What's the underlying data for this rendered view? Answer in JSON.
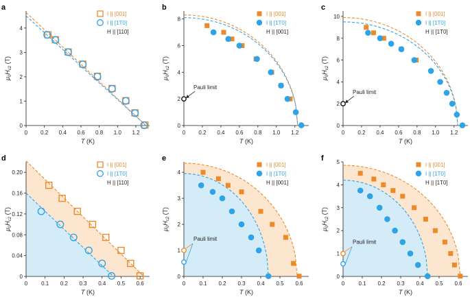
{
  "colors": {
    "orange": "#ec8a2a",
    "blue": "#2ea3e8",
    "orange_fill": "#fde6cf",
    "blue_fill": "#d3ecf8",
    "axis": "#231f20",
    "pauli": "#231f20"
  },
  "axis_texts": {
    "T_label": "T (K)",
    "y_label_mu": "μ",
    "y_label_sub0": "0",
    "y_label_H": "H",
    "y_label_subc2": "c2",
    "y_label_unit": "(T)"
  },
  "chart_data": [
    {
      "panel": "a",
      "type": "scatter",
      "xlim": [
        0,
        1.35
      ],
      "ylim": [
        0,
        4.7
      ],
      "xticks": [
        0,
        0.2,
        0.4,
        0.6,
        0.8,
        1.0,
        1.2
      ],
      "xtick_labels": [
        "0",
        "0.2",
        "0.4",
        "0.6",
        "0.8",
        "1.0",
        "1.2"
      ],
      "yticks": [
        0,
        1,
        2,
        3,
        4
      ],
      "ytick_labels": [
        "0",
        "1",
        "2",
        "3",
        "4"
      ],
      "marker": "open",
      "legend": [
        "I || [001]",
        "I || [1T0]",
        "H || [110]"
      ],
      "series": [
        {
          "name": "I || [001]",
          "color": "orange",
          "x": [
            0.24,
            0.32,
            0.46,
            0.62,
            0.78,
            0.94,
            1.09,
            1.19,
            1.3
          ],
          "y": [
            3.72,
            3.52,
            3.02,
            2.52,
            2.02,
            1.52,
            1.02,
            0.52,
            0.02
          ]
        },
        {
          "name": "I || [1T0]",
          "color": "blue",
          "x": [
            0.23,
            0.32,
            0.46,
            0.62,
            0.78,
            0.94,
            1.09,
            1.19,
            1.29
          ],
          "y": [
            3.72,
            3.51,
            3.01,
            2.51,
            2.01,
            1.51,
            1.01,
            0.51,
            0.01
          ]
        }
      ],
      "fits": [
        {
          "color": "orange",
          "x": [
            0,
            1.31
          ],
          "y": [
            4.64,
            0.0
          ]
        },
        {
          "color": "blue",
          "x": [
            0,
            1.31
          ],
          "y": [
            4.5,
            0.0
          ]
        }
      ]
    },
    {
      "panel": "b",
      "type": "scatter",
      "xlim": [
        0,
        1.35
      ],
      "ylim": [
        0,
        8.6
      ],
      "xticks": [
        0,
        0.2,
        0.4,
        0.6,
        0.8,
        1.0,
        1.2
      ],
      "xtick_labels": [
        "0",
        "0.2",
        "0.4",
        "0.6",
        "0.8",
        "1.0",
        "1.2"
      ],
      "yticks": [
        0,
        2,
        4,
        6,
        8
      ],
      "ytick_labels": [
        "0",
        "2",
        "4",
        "6",
        "8"
      ],
      "marker": "filled",
      "legend": [
        "I || [001]",
        "I || [1T0]",
        "H || [001]"
      ],
      "series": [
        {
          "name": "I || [001]",
          "color": "orange",
          "x": [
            0.25,
            0.43,
            0.52,
            0.63,
            0.78,
            0.95,
            1.05,
            1.15
          ],
          "y": [
            7.5,
            7.0,
            6.5,
            6.0,
            5.0,
            4.0,
            3.0,
            2.0
          ]
        },
        {
          "name": "I || [1T0]",
          "color": "blue",
          "x": [
            0.32,
            0.48,
            0.6,
            0.79,
            0.94,
            1.05,
            1.12,
            1.21,
            1.27
          ],
          "y": [
            7.0,
            6.5,
            6.0,
            5.0,
            4.0,
            3.0,
            2.0,
            1.0,
            0.02
          ]
        }
      ],
      "fits": [
        {
          "color": "orange",
          "Tc": 1.23,
          "H0": 8.3
        },
        {
          "color": "blue",
          "Tc": 1.23,
          "H0": 8.1
        }
      ],
      "pauli": {
        "label": "Pauli limit",
        "values": [
          2.0
        ]
      }
    },
    {
      "panel": "c",
      "type": "scatter",
      "xlim": [
        0,
        1.35
      ],
      "ylim": [
        0,
        10.5
      ],
      "xticks": [
        0,
        0.2,
        0.4,
        0.6,
        0.8,
        1.0,
        1.2
      ],
      "xtick_labels": [
        "0",
        "0.2",
        "0.4",
        "0.6",
        "0.8",
        "1.0",
        "1.2"
      ],
      "yticks": [
        0,
        2,
        4,
        6,
        8,
        10
      ],
      "ytick_labels": [
        "0",
        "2",
        "4",
        "6",
        "8",
        "10"
      ],
      "marker": "filled",
      "legend": [
        "I || [001]",
        "I || [1T0]",
        "H || [1T0]"
      ],
      "series": [
        {
          "name": "I || [001]",
          "color": "orange",
          "x": [
            0.25,
            0.33,
            0.44,
            0.63,
            0.79
          ],
          "y": [
            9.0,
            8.5,
            8.0,
            7.0,
            6.0
          ]
        },
        {
          "name": "I || [1T0]",
          "color": "blue",
          "x": [
            0.27,
            0.4,
            0.52,
            0.63,
            0.77,
            0.95,
            1.05,
            1.12,
            1.18,
            1.23,
            1.29
          ],
          "y": [
            8.5,
            8.0,
            7.5,
            7.0,
            6.0,
            5.0,
            4.0,
            3.0,
            2.0,
            1.0,
            0.02
          ]
        }
      ],
      "fits": [
        {
          "color": "orange",
          "Tc": 1.24,
          "H0": 9.9
        },
        {
          "color": "blue",
          "Tc": 1.24,
          "H0": 9.5
        }
      ],
      "pauli": {
        "label": "Pauli limit",
        "values": [
          2.0
        ]
      }
    },
    {
      "panel": "d",
      "type": "scatter",
      "xlim": [
        0,
        0.65
      ],
      "ylim": [
        0,
        0.22
      ],
      "xticks": [
        0,
        0.1,
        0.2,
        0.3,
        0.4,
        0.5,
        0.6
      ],
      "xtick_labels": [
        "0",
        "0.1",
        "0.2",
        "0.3",
        "0.4",
        "0.5",
        "0.6"
      ],
      "yticks": [
        0,
        0.04,
        0.08,
        0.12,
        0.16,
        0.2
      ],
      "ytick_labels": [
        "0",
        "0.04",
        "0.08",
        "0.12",
        "0.16",
        "0.20"
      ],
      "marker": "open",
      "legend": [
        "I || [001]",
        "I || [1T0]",
        "H || [110]"
      ],
      "series": [
        {
          "name": "I || [001]",
          "color": "orange",
          "x": [
            0.12,
            0.19,
            0.27,
            0.35,
            0.42,
            0.5,
            0.55,
            0.6
          ],
          "y": [
            0.175,
            0.15,
            0.125,
            0.1,
            0.075,
            0.05,
            0.025,
            0.001
          ]
        },
        {
          "name": "I || [1T0]",
          "color": "blue",
          "x": [
            0.08,
            0.18,
            0.25,
            0.33,
            0.4,
            0.45
          ],
          "y": [
            0.125,
            0.1,
            0.075,
            0.05,
            0.025,
            0.001
          ]
        }
      ],
      "fits": [
        {
          "color": "orange",
          "x": [
            0,
            0.62
          ],
          "y": [
            0.222,
            0.0
          ]
        },
        {
          "color": "blue",
          "x": [
            0,
            0.46
          ],
          "y": [
            0.16,
            0.0
          ]
        }
      ],
      "shade": true
    },
    {
      "panel": "e",
      "type": "scatter",
      "xlim": [
        0,
        0.65
      ],
      "ylim": [
        0,
        4.4
      ],
      "xticks": [
        0,
        0.1,
        0.2,
        0.3,
        0.4,
        0.5,
        0.6
      ],
      "xtick_labels": [
        "0",
        "0.1",
        "0.2",
        "0.3",
        "0.4",
        "0.5",
        "0.6"
      ],
      "yticks": [
        0,
        1,
        2,
        3,
        4
      ],
      "ytick_labels": [
        "0",
        "1",
        "2",
        "3",
        "4"
      ],
      "marker": "filled",
      "legend": [
        "I || [001]",
        "I || [1T0]",
        "H || [001]"
      ],
      "series": [
        {
          "name": "I || [001]",
          "color": "orange",
          "x": [
            0.1,
            0.18,
            0.23,
            0.3,
            0.4,
            0.46,
            0.53,
            0.57,
            0.6
          ],
          "y": [
            4.0,
            3.75,
            3.5,
            3.25,
            2.5,
            2.0,
            1.5,
            0.5,
            0.01
          ]
        },
        {
          "name": "I || [1T0]",
          "color": "blue",
          "x": [
            0.09,
            0.15,
            0.2,
            0.25,
            0.3,
            0.35,
            0.39,
            0.44
          ],
          "y": [
            3.5,
            3.25,
            3.0,
            2.5,
            2.0,
            1.5,
            1.0,
            0.01
          ]
        }
      ],
      "fits": [
        {
          "color": "orange",
          "Tc": 0.59,
          "H0": 4.35
        },
        {
          "color": "blue",
          "Tc": 0.44,
          "H0": 3.95
        }
      ],
      "shade": true,
      "pauli": {
        "label": "Pauli limit",
        "values": [
          1.0,
          0.55
        ]
      }
    },
    {
      "panel": "f",
      "type": "scatter",
      "xlim": [
        0,
        0.65
      ],
      "ylim": [
        0,
        5.0
      ],
      "xticks": [
        0,
        0.1,
        0.2,
        0.3,
        0.4,
        0.5,
        0.6
      ],
      "xtick_labels": [
        "0",
        "0.1",
        "0.2",
        "0.3",
        "0.4",
        "0.5",
        "0.6"
      ],
      "yticks": [
        0,
        1,
        2,
        3,
        4,
        5
      ],
      "ytick_labels": [
        "0",
        "1",
        "2",
        "3",
        "4",
        "5"
      ],
      "marker": "filled",
      "legend": [
        "I || [001]",
        "I || [1T0]",
        "H || [1T0]"
      ],
      "series": [
        {
          "name": "I || [001]",
          "color": "orange",
          "x": [
            0.09,
            0.16,
            0.21,
            0.26,
            0.31,
            0.37,
            0.43,
            0.48,
            0.53,
            0.56,
            0.58,
            0.61
          ],
          "y": [
            4.5,
            4.25,
            4.0,
            3.75,
            3.5,
            3.0,
            2.5,
            2.0,
            1.5,
            1.0,
            0.5,
            0.01
          ]
        },
        {
          "name": "I || [1T0]",
          "color": "blue",
          "x": [
            0.09,
            0.14,
            0.19,
            0.23,
            0.27,
            0.31,
            0.35,
            0.39,
            0.44
          ],
          "y": [
            3.75,
            3.5,
            3.0,
            2.5,
            2.0,
            1.5,
            1.0,
            0.5,
            0.01
          ]
        }
      ],
      "fits": [
        {
          "color": "orange",
          "Tc": 0.61,
          "H0": 4.85
        },
        {
          "color": "blue",
          "Tc": 0.44,
          "H0": 4.2
        }
      ],
      "shade": true,
      "pauli": {
        "label": "Pauli limit",
        "values": [
          1.0,
          0.55
        ]
      }
    }
  ]
}
